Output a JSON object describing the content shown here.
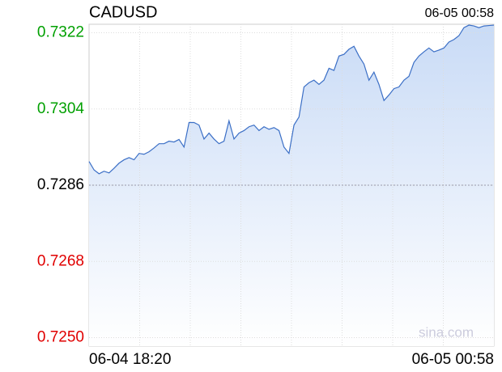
{
  "chart_data": {
    "type": "area",
    "title": "CADUSD",
    "time": "06-05 00:58",
    "watermark": "sina.com",
    "categories": [
      "06-04 18:20",
      null,
      null,
      null,
      null,
      null,
      null,
      null,
      null,
      null,
      null,
      null,
      null,
      null,
      null,
      null,
      null,
      null,
      null,
      null,
      null,
      null,
      null,
      null,
      null,
      null,
      null,
      null,
      null,
      null,
      null,
      null,
      null,
      null,
      null,
      null,
      null,
      null,
      null,
      null,
      null,
      null,
      null,
      null,
      null,
      null,
      null,
      null,
      null,
      null,
      null,
      null,
      null,
      null,
      null,
      null,
      null,
      null,
      null,
      null,
      null,
      null,
      null,
      null,
      null,
      null,
      null,
      null,
      null,
      null,
      null,
      null,
      null,
      null,
      null,
      null,
      null,
      null,
      null,
      null,
      null,
      "06-05 00:58"
    ],
    "values": [
      0.72916,
      0.72896,
      0.72887,
      0.72893,
      0.72889,
      0.729,
      0.72912,
      0.7292,
      0.72925,
      0.7292,
      0.72935,
      0.72933,
      0.72939,
      0.72948,
      0.72958,
      0.72958,
      0.72964,
      0.72962,
      0.72968,
      0.7295,
      0.73008,
      0.73008,
      0.73002,
      0.72969,
      0.72983,
      0.72969,
      0.72958,
      0.72964,
      0.73012,
      0.72969,
      0.72983,
      0.72989,
      0.72998,
      0.73002,
      0.72989,
      0.72998,
      0.72992,
      0.72996,
      0.72989,
      0.7295,
      0.72935,
      0.73002,
      0.73021,
      0.73092,
      0.73102,
      0.73108,
      0.73098,
      0.73108,
      0.73136,
      0.73131,
      0.73165,
      0.73169,
      0.73181,
      0.73188,
      0.73165,
      0.73146,
      0.73108,
      0.73127,
      0.73098,
      0.7306,
      0.73073,
      0.73088,
      0.73092,
      0.73108,
      0.73117,
      0.7315,
      0.73165,
      0.73175,
      0.73184,
      0.73175,
      0.73179,
      0.73184,
      0.73198,
      0.73204,
      0.73213,
      0.73232,
      0.73238,
      0.73236,
      0.73232,
      0.73236,
      0.73237,
      0.73238
    ],
    "color": "#3b6fc6",
    "fill_color": "#c9dbf6",
    "ylim": [
      0.7248,
      0.7324
    ],
    "yticks": [
      {
        "value": 0.725,
        "label": "0.7250"
      },
      0.7268,
      0.7286,
      0.7304,
      0.7322
    ],
    "reference_line": 0.7286,
    "up_color": "#00a000",
    "down_color": "#e00000",
    "flat_color": "#000000",
    "grid": true
  }
}
